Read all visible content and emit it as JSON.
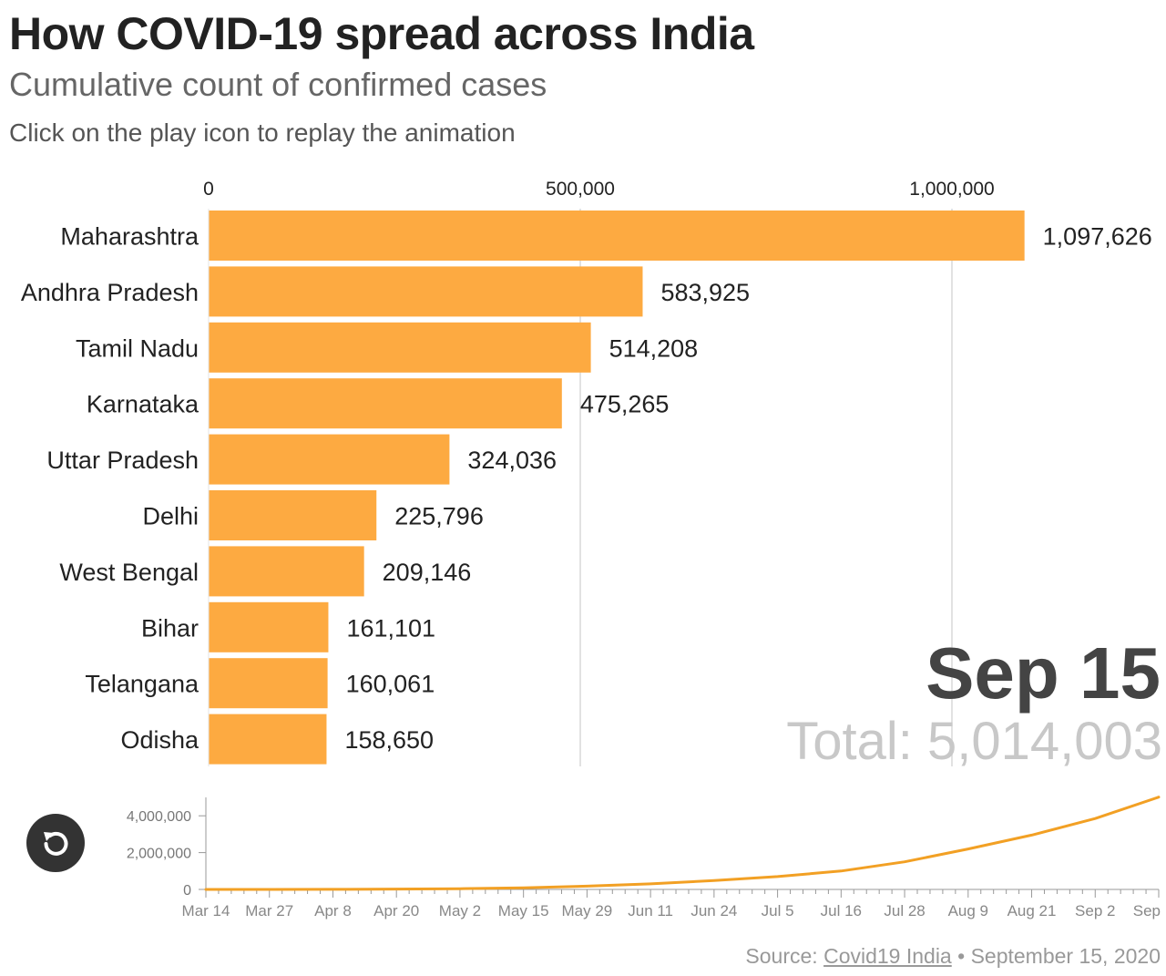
{
  "header": {
    "title": "How COVID-19 spread across India",
    "subtitle": "Cumulative count of confirmed cases",
    "instruction": "Click on the play icon to replay the animation"
  },
  "chart_data": [
    {
      "type": "bar",
      "orientation": "horizontal",
      "title": "",
      "xlim": [
        0,
        1100000
      ],
      "x_ticks": [
        0,
        500000,
        1000000
      ],
      "x_tick_labels": [
        "0",
        "500,000",
        "1,000,000"
      ],
      "grid": true,
      "bar_color": "#fdaa41",
      "categories": [
        "Maharashtra",
        "Andhra Pradesh",
        "Tamil Nadu",
        "Karnataka",
        "Uttar Pradesh",
        "Delhi",
        "West Bengal",
        "Bihar",
        "Telangana",
        "Odisha"
      ],
      "values": [
        1097626,
        583925,
        514208,
        475265,
        324036,
        225796,
        209146,
        161101,
        160061,
        158650
      ],
      "value_labels": [
        "1,097,626",
        "583,925",
        "514,208",
        "475,265",
        "324,036",
        "225,796",
        "209,146",
        "161,101",
        "160,061",
        "158,650"
      ],
      "annotations": {
        "date": "Sep 15",
        "total": "Total: 5,014,003"
      }
    },
    {
      "type": "line",
      "title": "",
      "line_color": "#f2a024",
      "ylim": [
        0,
        5000000
      ],
      "y_ticks": [
        0,
        2000000,
        4000000
      ],
      "y_tick_labels": [
        "0",
        "2,000,000",
        "4,000,000"
      ],
      "x_tick_labels": [
        "Mar 14",
        "Mar 27",
        "Apr 8",
        "Apr 20",
        "May 2",
        "May 15",
        "May 29",
        "Jun 11",
        "Jun 24",
        "Jul 5",
        "Jul 16",
        "Jul 28",
        "Aug 9",
        "Aug 21",
        "Sep 2",
        "Sep"
      ],
      "x": [
        "Mar 14",
        "Mar 27",
        "Apr 8",
        "Apr 20",
        "May 2",
        "May 15",
        "May 29",
        "Jun 11",
        "Jun 24",
        "Jul 5",
        "Jul 16",
        "Jul 28",
        "Aug 9",
        "Aug 21",
        "Sep 2",
        "Sep 15"
      ],
      "y": [
        100,
        900,
        6000,
        18000,
        39000,
        82000,
        180000,
        300000,
        480000,
        700000,
        1000000,
        1500000,
        2200000,
        2950000,
        3850000,
        5014003
      ]
    }
  ],
  "controls": {
    "replay_icon": "replay-icon"
  },
  "footer": {
    "source_prefix": "Source: ",
    "source_link": "Covid19 India",
    "source_suffix": " • September 15, 2020"
  },
  "colors": {
    "bar": "#fdaa41",
    "line": "#f2a024",
    "grid": "#d9d9d9",
    "date": "#444444",
    "total": "#c8c8c8"
  }
}
